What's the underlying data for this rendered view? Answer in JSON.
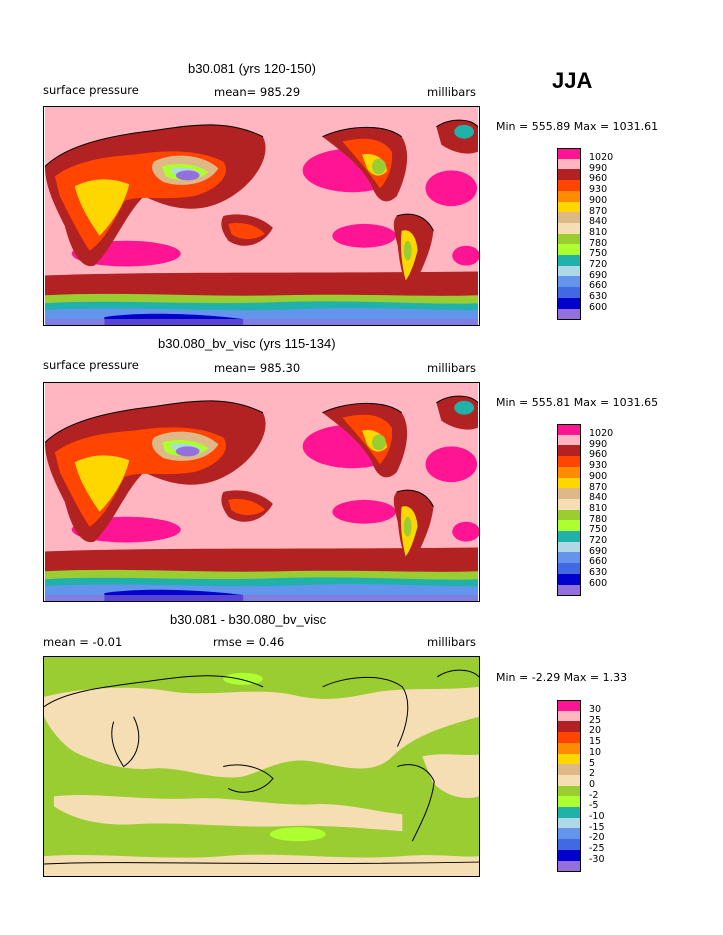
{
  "season": "JJA",
  "panels": [
    {
      "title": "b30.081 (yrs 120-150)",
      "left_label": "surface pressure",
      "center_label": "mean= 985.29",
      "right_label": "millibars",
      "minmax": "Min = 555.89 Max = 1031.61",
      "kind": "pressure"
    },
    {
      "title": "b30.080_bv_visc (yrs 115-134)",
      "left_label": "surface pressure",
      "center_label": "mean= 985.30",
      "right_label": "millibars",
      "minmax": "Min = 555.81 Max = 1031.65",
      "kind": "pressure"
    },
    {
      "title": "b30.081 - b30.080_bv_visc",
      "left_label": "mean =   -0.01",
      "center_label": "rmse =    0.46",
      "right_label": "millibars",
      "minmax": "Min =   -2.29 Max =     1.33",
      "kind": "diff"
    }
  ],
  "legends": {
    "pressure": {
      "labels": [
        "1020",
        "990",
        "960",
        "930",
        "900",
        "870",
        "840",
        "810",
        "780",
        "750",
        "720",
        "690",
        "660",
        "630",
        "600"
      ],
      "colors": [
        "#ff1493",
        "#ffb6c1",
        "#b22222",
        "#ff4500",
        "#ff8c00",
        "#ffd700",
        "#deb887",
        "#f5deb3",
        "#9acd32",
        "#adff2f",
        "#20b2aa",
        "#add8e6",
        "#6495ed",
        "#4169e1",
        "#0000cd",
        "#9370db"
      ]
    },
    "diff": {
      "labels": [
        "30",
        "25",
        "20",
        "15",
        "10",
        "5",
        "2",
        "0",
        "-2",
        "-5",
        "-10",
        "-15",
        "-20",
        "-25",
        "-30"
      ],
      "colors": [
        "#ff1493",
        "#ffb6c1",
        "#b22222",
        "#ff4500",
        "#ff8c00",
        "#ffd700",
        "#deb887",
        "#f5deb3",
        "#9acd32",
        "#adff2f",
        "#20b2aa",
        "#add8e6",
        "#6495ed",
        "#4169e1",
        "#0000cd",
        "#9370db"
      ]
    }
  }
}
